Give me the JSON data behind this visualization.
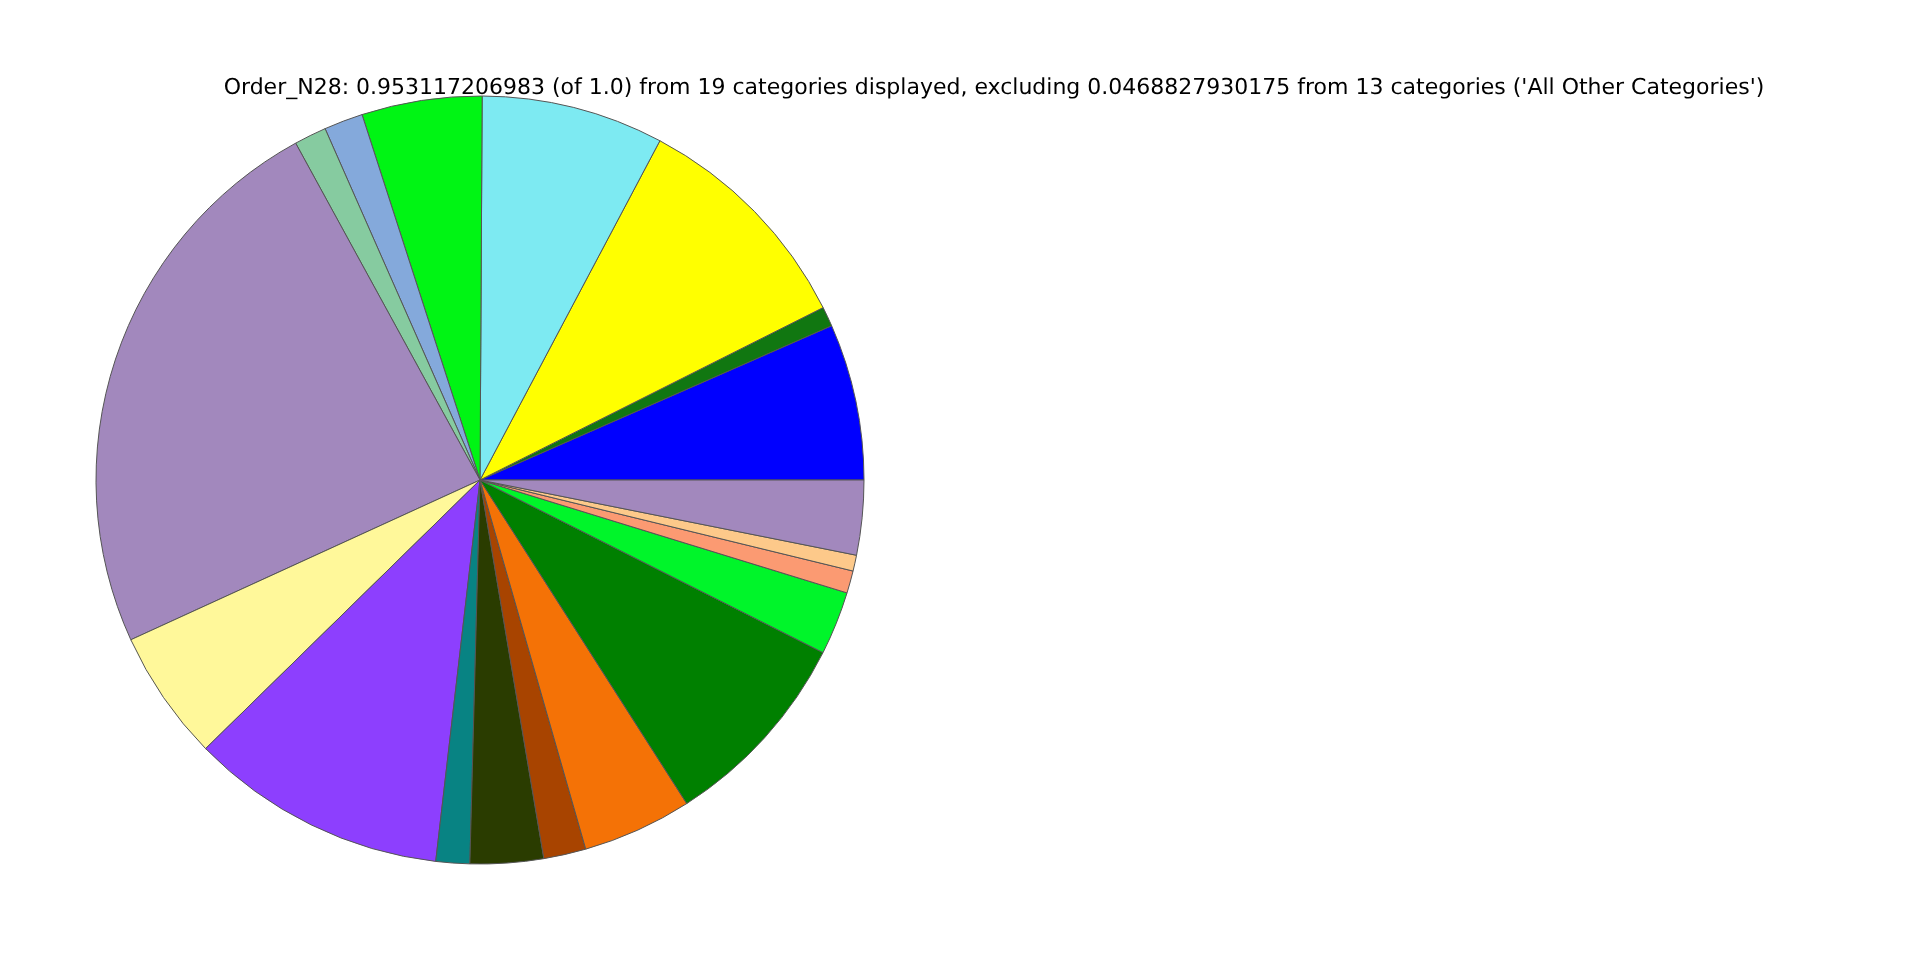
{
  "chart_data": {
    "type": "pie",
    "title": "Order_N28: 0.953117206983 (of 1.0) from 19 categories displayed, excluding 0.0468827930175 from 13 categories ('All Other Categories')",
    "categories": [
      null,
      null,
      null,
      null,
      null,
      null,
      null,
      null,
      null,
      null,
      null,
      null,
      null,
      null,
      null,
      null,
      null,
      null,
      null
    ],
    "values": [
      6.58,
      0.83,
      9.83,
      7.67,
      5.06,
      1.64,
      1.36,
      23.86,
      5.5,
      10.83,
      1.42,
      3.08,
      1.78,
      4.61,
      8.53,
      2.67,
      0.94,
      0.67,
      3.14
    ],
    "colors": [
      "#0000ff",
      "#117711",
      "#ffff00",
      "#7deaf2",
      "#00f514",
      "#84a9db",
      "#86cba0",
      "#a288bd",
      "#fff89a",
      "#8d3ffe",
      "#088383",
      "#2a3c00",
      "#a84400",
      "#f47206",
      "#008000",
      "#00f52a",
      "#fb9a72",
      "#fdc98a",
      "#a288bd"
    ]
  }
}
